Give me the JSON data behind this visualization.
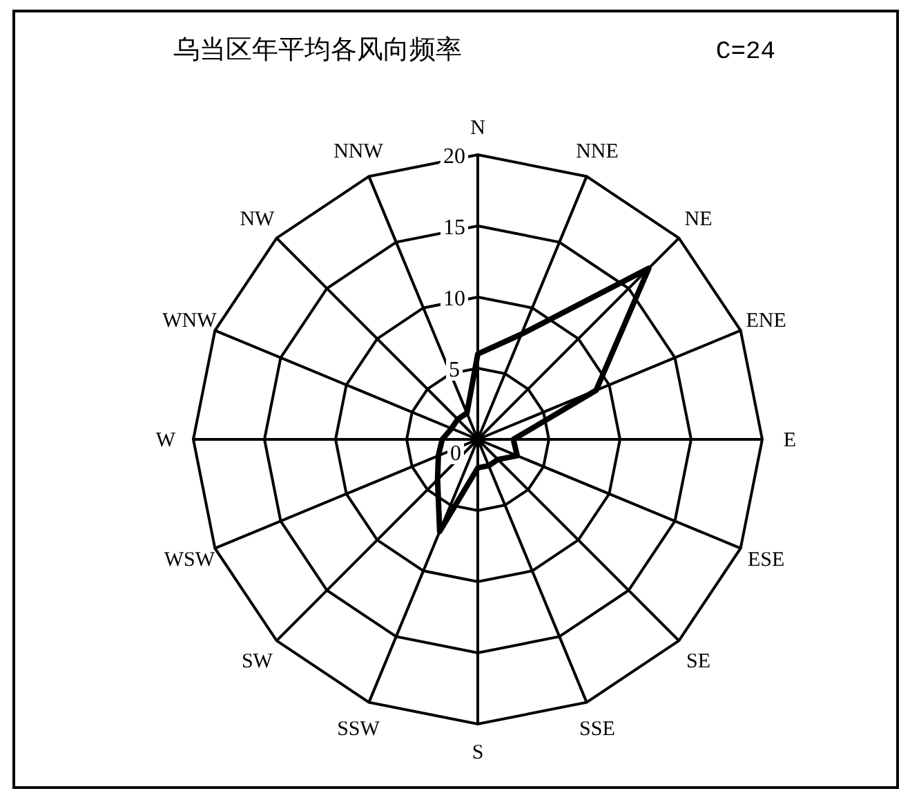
{
  "chart_data": {
    "type": "radar",
    "title": "乌当区年平均各风向频率",
    "subtitle": "C=24",
    "categories": [
      "N",
      "NNE",
      "NE",
      "ENE",
      "E",
      "ESE",
      "SE",
      "SSE",
      "S",
      "SSW",
      "SW",
      "WSW",
      "W",
      "WNW",
      "NW",
      "NNW"
    ],
    "series": [
      {
        "color": "#000000",
        "values": [
          6,
          8,
          17,
          9,
          2.5,
          3,
          2,
          2,
          2,
          7,
          4,
          3,
          2.5,
          2,
          2,
          2
        ]
      }
    ],
    "ylim": [
      0,
      20
    ],
    "yticks": [
      0,
      5,
      10,
      15,
      20
    ],
    "grid": true
  }
}
